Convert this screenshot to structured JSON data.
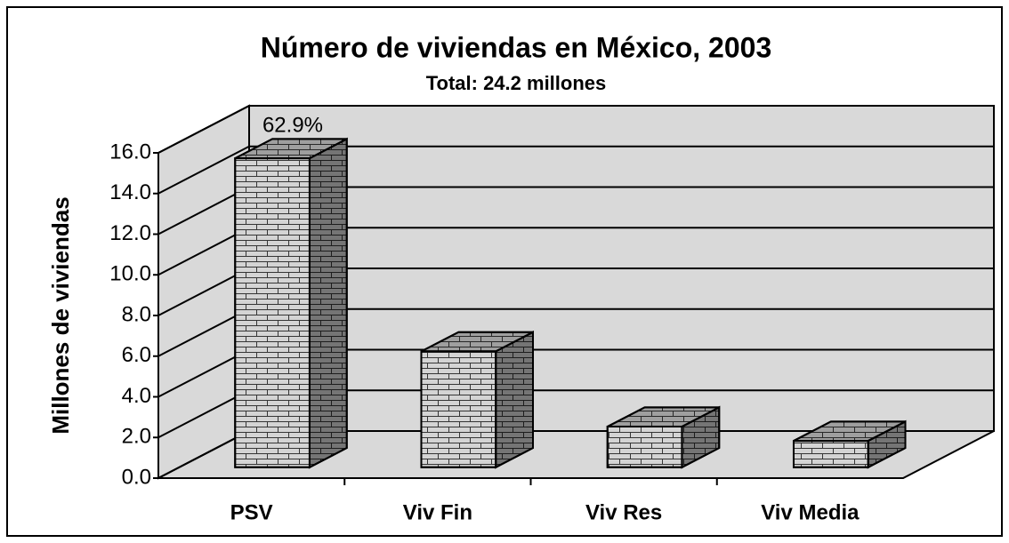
{
  "chart_data": {
    "type": "bar3d",
    "title": "Número de viviendas en México, 2003",
    "subtitle": "Total: 24.2 millones",
    "y_label": "Millones de viviendas",
    "categories": [
      "PSV",
      "Viv Fin",
      "Viv Res",
      "Viv Media"
    ],
    "values": [
      15.2,
      5.7,
      2.0,
      1.3
    ],
    "annotation": "62.9%",
    "color": "#d4d4d4",
    "ylim": [
      0,
      16
    ],
    "yticks": [
      {
        "value": 0,
        "label": "0.0"
      },
      {
        "value": 2,
        "label": "2.0"
      },
      {
        "value": 4,
        "label": "4.0"
      },
      {
        "value": 6,
        "label": "6.0"
      },
      {
        "value": 8,
        "label": "8.0"
      },
      {
        "value": 10,
        "label": "10.0"
      },
      {
        "value": 12,
        "label": "12.0"
      },
      {
        "value": 14,
        "label": "14.0"
      },
      {
        "value": 16,
        "label": "16.0"
      }
    ],
    "grid": true
  }
}
